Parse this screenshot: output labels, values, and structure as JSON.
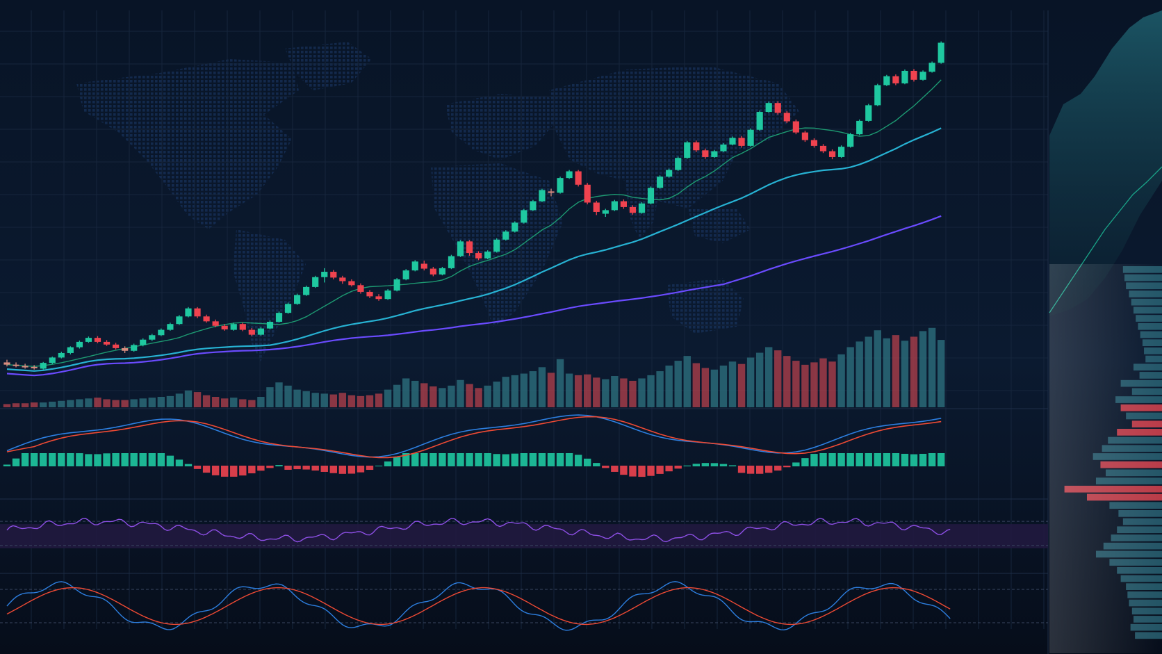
{
  "colors": {
    "background": "#0a1628",
    "grid": "#16253c",
    "up": "#1fc8a0",
    "down": "#f0434f",
    "neutral": "#d98c7f",
    "ma_fast": "#1d9a72",
    "ma_mid": "#27b2d3",
    "ma_slow": "#6a4bff",
    "macd_line": "#2d7fe0",
    "signal_line": "#ef4a34",
    "rsi_line": "#8d4fe5",
    "rsi_band": "#21193f",
    "profile_up": "#2e6c7e",
    "profile_down": "#d8434f"
  },
  "chart_data": [
    {
      "type": "candlestick",
      "panel": "price",
      "ohlc": [
        [
          32.0,
          33.2,
          30.2,
          31.0
        ],
        [
          31.0,
          32.0,
          29.8,
          30.4
        ],
        [
          30.4,
          31.4,
          29.2,
          30.0
        ],
        [
          30.0,
          30.8,
          28.8,
          29.5
        ],
        [
          29.2,
          32.2,
          28.8,
          31.8
        ],
        [
          31.8,
          34.6,
          31.2,
          34.2
        ],
        [
          34.2,
          36.8,
          33.8,
          36.2
        ],
        [
          36.2,
          39.2,
          35.6,
          38.8
        ],
        [
          38.8,
          41.8,
          38.2,
          41.2
        ],
        [
          41.2,
          43.6,
          40.8,
          43.0
        ],
        [
          43.0,
          43.8,
          40.6,
          41.2
        ],
        [
          41.2,
          42.0,
          39.4,
          40.0
        ],
        [
          40.0,
          40.8,
          37.8,
          38.4
        ],
        [
          38.4,
          39.2,
          36.2,
          37.2
        ],
        [
          37.2,
          40.4,
          36.8,
          39.8
        ],
        [
          39.8,
          42.8,
          39.2,
          42.2
        ],
        [
          42.2,
          44.8,
          41.6,
          44.2
        ],
        [
          44.2,
          47.2,
          43.8,
          46.6
        ],
        [
          46.6,
          49.8,
          46.2,
          49.2
        ],
        [
          49.2,
          53.2,
          48.8,
          52.6
        ],
        [
          52.6,
          56.8,
          52.2,
          56.2
        ],
        [
          56.2,
          56.8,
          51.8,
          52.6
        ],
        [
          52.6,
          53.4,
          49.8,
          50.4
        ],
        [
          50.4,
          51.2,
          47.8,
          48.4
        ],
        [
          48.4,
          49.2,
          46.2,
          46.8
        ],
        [
          46.6,
          49.8,
          46.2,
          49.2
        ],
        [
          49.2,
          49.8,
          46.0,
          46.6
        ],
        [
          46.6,
          47.4,
          43.8,
          44.4
        ],
        [
          44.4,
          47.8,
          44.0,
          47.2
        ],
        [
          47.2,
          50.8,
          46.8,
          50.2
        ],
        [
          50.2,
          54.8,
          49.8,
          54.2
        ],
        [
          54.2,
          58.8,
          53.8,
          58.2
        ],
        [
          58.2,
          62.8,
          57.8,
          62.2
        ],
        [
          62.2,
          66.4,
          61.8,
          65.8
        ],
        [
          65.8,
          70.8,
          65.4,
          70.2
        ],
        [
          70.2,
          74.2,
          67.8,
          72.6
        ],
        [
          72.6,
          73.4,
          69.2,
          70.0
        ],
        [
          70.0,
          70.8,
          67.2,
          68.4
        ],
        [
          68.4,
          69.2,
          66.0,
          66.6
        ],
        [
          66.6,
          67.4,
          62.8,
          63.6
        ],
        [
          63.6,
          64.4,
          60.8,
          61.6
        ],
        [
          61.6,
          62.6,
          59.6,
          60.4
        ],
        [
          60.4,
          64.8,
          60.0,
          64.2
        ],
        [
          64.2,
          69.8,
          63.8,
          69.2
        ],
        [
          69.2,
          73.8,
          68.8,
          73.2
        ],
        [
          73.2,
          77.8,
          72.8,
          77.2
        ],
        [
          76.2,
          77.6,
          73.2,
          74.0
        ],
        [
          74.0,
          74.8,
          70.6,
          71.4
        ],
        [
          71.4,
          74.8,
          71.0,
          74.2
        ],
        [
          74.2,
          80.2,
          73.8,
          79.6
        ],
        [
          79.6,
          86.8,
          79.2,
          86.2
        ],
        [
          86.2,
          86.8,
          79.8,
          81.0
        ],
        [
          81.0,
          81.8,
          77.8,
          78.6
        ],
        [
          78.6,
          82.2,
          78.2,
          81.6
        ],
        [
          81.6,
          87.6,
          81.2,
          87.0
        ],
        [
          87.0,
          91.2,
          86.6,
          90.6
        ],
        [
          90.6,
          95.2,
          90.2,
          94.6
        ],
        [
          94.6,
          100.8,
          94.2,
          100.2
        ],
        [
          100.2,
          104.8,
          99.8,
          104.2
        ],
        [
          104.2,
          109.8,
          103.8,
          109.2
        ],
        [
          108.6,
          109.8,
          106.4,
          108.0
        ],
        [
          108.0,
          115.2,
          107.6,
          114.6
        ],
        [
          114.6,
          118.2,
          114.2,
          117.6
        ],
        [
          117.6,
          118.2,
          110.8,
          111.6
        ],
        [
          111.6,
          112.4,
          102.8,
          103.6
        ],
        [
          103.6,
          104.4,
          98.0,
          99.4
        ],
        [
          98.6,
          100.8,
          97.2,
          100.2
        ],
        [
          100.2,
          104.8,
          99.8,
          104.2
        ],
        [
          104.2,
          105.0,
          100.8,
          101.6
        ],
        [
          101.6,
          102.4,
          98.2,
          99.0
        ],
        [
          99.0,
          103.8,
          98.6,
          103.2
        ],
        [
          103.2,
          110.8,
          102.8,
          110.2
        ],
        [
          110.2,
          115.8,
          109.8,
          115.2
        ],
        [
          115.2,
          118.8,
          114.8,
          118.2
        ],
        [
          118.2,
          124.2,
          117.8,
          123.6
        ],
        [
          123.6,
          131.2,
          123.2,
          130.6
        ],
        [
          130.6,
          131.4,
          126.2,
          127.0
        ],
        [
          127.0,
          127.8,
          123.2,
          124.0
        ],
        [
          124.0,
          127.2,
          123.6,
          126.6
        ],
        [
          126.6,
          130.2,
          126.2,
          129.6
        ],
        [
          129.6,
          133.2,
          129.2,
          132.6
        ],
        [
          132.6,
          133.4,
          128.2,
          129.0
        ],
        [
          129.0,
          136.8,
          128.6,
          136.2
        ],
        [
          136.2,
          144.8,
          135.8,
          144.2
        ],
        [
          144.2,
          148.8,
          143.8,
          148.2
        ],
        [
          148.2,
          149.0,
          143.0,
          143.8
        ],
        [
          143.8,
          144.6,
          139.2,
          140.0
        ],
        [
          140.0,
          140.8,
          134.2,
          135.0
        ],
        [
          135.0,
          135.8,
          130.8,
          131.6
        ],
        [
          131.6,
          132.4,
          128.2,
          129.0
        ],
        [
          129.0,
          129.8,
          125.8,
          126.6
        ],
        [
          126.6,
          127.4,
          123.0,
          124.0
        ],
        [
          124.0,
          129.2,
          123.6,
          128.6
        ],
        [
          128.6,
          134.8,
          128.2,
          134.2
        ],
        [
          134.2,
          140.8,
          133.8,
          140.2
        ],
        [
          140.2,
          147.8,
          139.8,
          147.2
        ],
        [
          147.2,
          156.8,
          146.8,
          156.2
        ],
        [
          156.2,
          160.8,
          155.8,
          160.2
        ],
        [
          160.2,
          161.0,
          156.2,
          157.0
        ],
        [
          157.0,
          163.2,
          156.6,
          162.6
        ],
        [
          162.6,
          163.4,
          157.8,
          158.6
        ],
        [
          158.6,
          162.8,
          158.2,
          162.2
        ],
        [
          162.2,
          166.8,
          161.8,
          166.2
        ],
        [
          166.2,
          175.8,
          165.8,
          175.2
        ]
      ],
      "moving_averages": [
        {
          "period": 10,
          "color": "#1d9a72"
        },
        {
          "period": 30,
          "color": "#27b2d3"
        },
        {
          "period": 80,
          "color": "#6a4bff"
        }
      ],
      "ylim": [
        20,
        185
      ],
      "grid": true,
      "background": "world dot map"
    },
    {
      "type": "bar",
      "panel": "volume",
      "values": [
        4,
        5,
        5,
        6,
        6,
        7,
        8,
        9,
        10,
        11,
        12,
        10,
        9,
        9,
        10,
        11,
        12,
        13,
        14,
        17,
        21,
        19,
        15,
        13,
        11,
        12,
        10,
        9,
        13,
        25,
        31,
        27,
        22,
        20,
        18,
        17,
        16,
        18,
        15,
        14,
        15,
        17,
        22,
        28,
        36,
        33,
        30,
        26,
        24,
        27,
        34,
        29,
        24,
        27,
        32,
        38,
        40,
        42,
        45,
        50,
        43,
        60,
        42,
        40,
        41,
        37,
        35,
        39,
        36,
        33,
        36,
        40,
        45,
        52,
        58,
        64,
        55,
        49,
        47,
        52,
        57,
        54,
        62,
        68,
        75,
        71,
        64,
        58,
        53,
        56,
        61,
        57,
        66,
        75,
        82,
        88,
        96,
        86,
        90,
        83,
        88,
        95,
        99,
        84
      ],
      "ylim": [
        0,
        130
      ]
    },
    {
      "type": "macd",
      "panel": "macd",
      "macd_color": "#2d7fe0",
      "signal_color": "#ef4a34"
    },
    {
      "type": "line",
      "panel": "rsi",
      "series": [
        {
          "color": "#8d4fe5"
        }
      ],
      "band": [
        30,
        70
      ],
      "ylim": [
        0,
        100
      ]
    },
    {
      "type": "line",
      "panel": "stochastic",
      "series": [
        {
          "color": "#2d7fe0"
        },
        {
          "color": "#ef4a34"
        }
      ],
      "levels": [
        20,
        80
      ],
      "ylim": [
        0,
        100
      ]
    },
    {
      "type": "bar",
      "panel": "volume_profile",
      "orientation": "horizontal",
      "values": [
        52,
        50,
        48,
        44,
        41,
        38,
        35,
        32,
        29,
        26,
        24,
        22,
        38,
        30,
        55,
        40,
        62,
        55,
        48,
        40,
        60,
        72,
        80,
        92,
        82,
        75,
        88,
        130,
        100,
        70,
        58,
        52,
        60,
        68,
        78,
        88,
        70,
        60,
        55,
        48,
        46,
        44,
        40,
        38,
        42,
        36
      ],
      "down_rows": [
        17,
        19,
        20,
        24,
        27,
        28
      ]
    }
  ]
}
